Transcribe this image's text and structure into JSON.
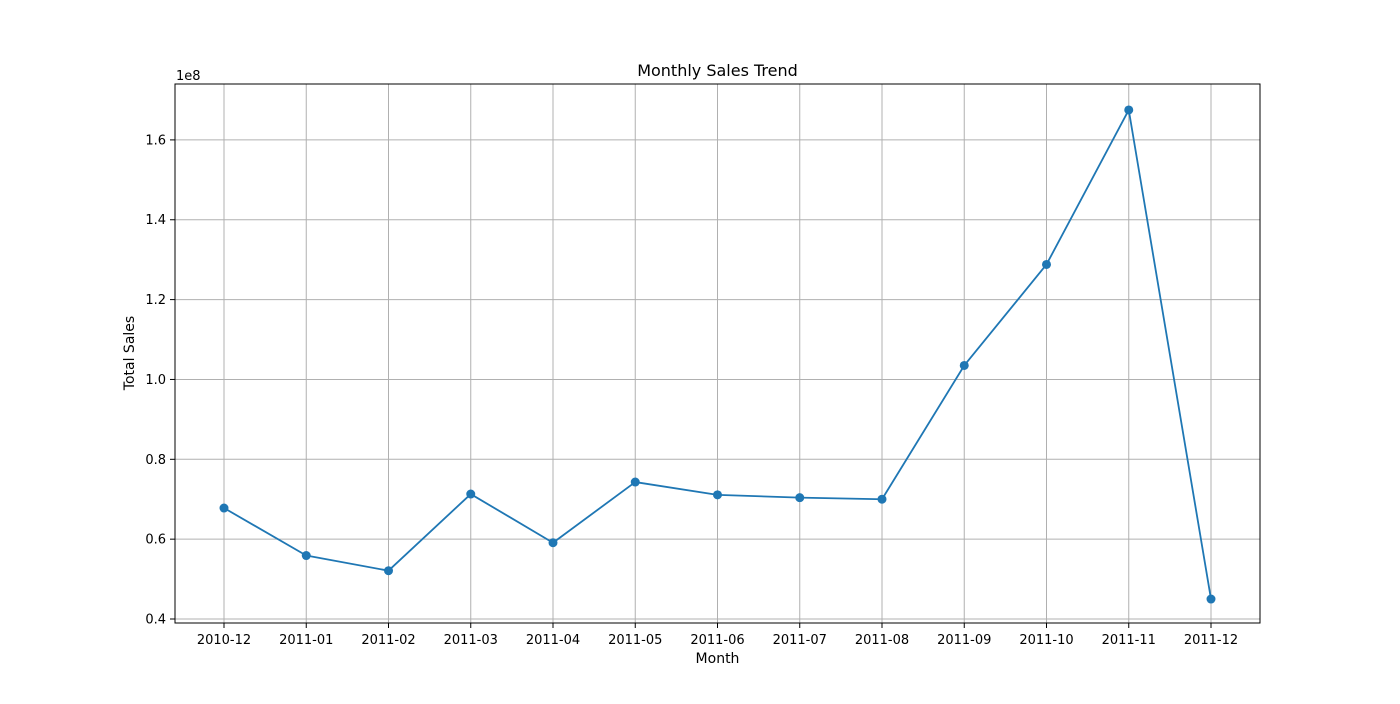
{
  "chart_data": {
    "type": "line",
    "title": "Monthly Sales Trend",
    "xlabel": "Month",
    "ylabel": "Total Sales",
    "y_offset_label": "1e8",
    "categories": [
      "2010-12",
      "2011-01",
      "2011-02",
      "2011-03",
      "2011-04",
      "2011-05",
      "2011-06",
      "2011-07",
      "2011-08",
      "2011-09",
      "2011-10",
      "2011-11",
      "2011-12"
    ],
    "series": [
      {
        "color": "#1f77b4",
        "marker": "circle",
        "values": [
          0.678,
          0.559,
          0.521,
          0.713,
          0.591,
          0.743,
          0.711,
          0.704,
          0.7,
          1.035,
          1.288,
          1.675,
          0.45
        ]
      }
    ],
    "value_scale": 100000000,
    "ylim": [
      0.39,
      1.74
    ],
    "yticks": [
      0.4,
      0.6,
      0.8,
      1.0,
      1.2,
      1.4,
      1.6
    ],
    "ytick_labels": [
      "0.4",
      "0.6",
      "0.8",
      "1.0",
      "1.2",
      "1.4",
      "1.6"
    ],
    "grid": true,
    "legend": "none"
  }
}
